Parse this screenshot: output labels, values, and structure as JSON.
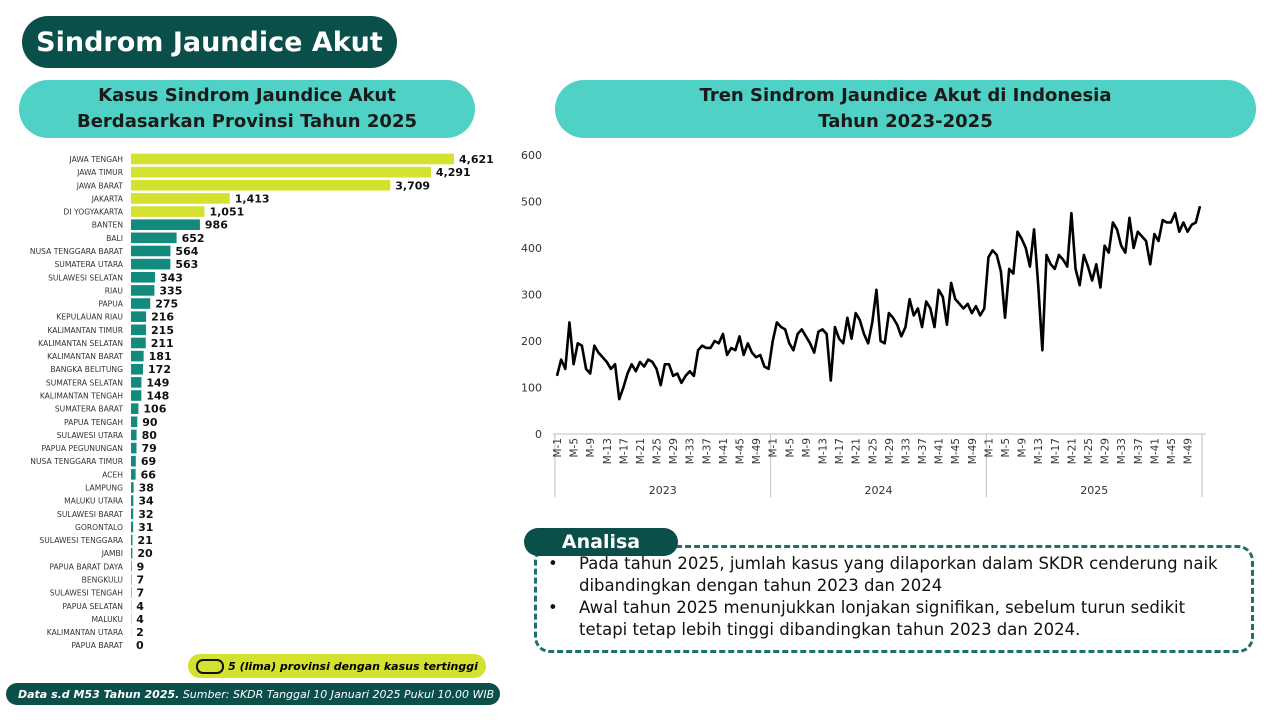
{
  "header": {
    "title": "Sindrom Jaundice Akut"
  },
  "chart_data": [
    {
      "type": "bar",
      "title": [
        "Kasus Sindrom Jaundice Akut",
        "Berdasarkan Provinsi Tahun 2025"
      ],
      "categories": [
        "JAWA TENGAH",
        "JAWA TIMUR",
        "JAWA BARAT",
        "JAKARTA",
        "DI YOGYAKARTA",
        "BANTEN",
        "BALI",
        "NUSA TENGGARA BARAT",
        "SUMATERA UTARA",
        "SULAWESI SELATAN",
        "RIAU",
        "PAPUA",
        "KEPULAUAN RIAU",
        "KALIMANTAN TIMUR",
        "KALIMANTAN SELATAN",
        "KALIMANTAN BARAT",
        "BANGKA BELITUNG",
        "SUMATERA SELATAN",
        "KALIMANTAN TENGAH",
        "SUMATERA BARAT",
        "PAPUA TENGAH",
        "SULAWESI UTARA",
        "PAPUA PEGUNUNGAN",
        "NUSA TENGGARA TIMUR",
        "ACEH",
        "LAMPUNG",
        "MALUKU UTARA",
        "SULAWESI BARAT",
        "GORONTALO",
        "SULAWESI TENGGARA",
        "JAMBI",
        "PAPUA BARAT DAYA",
        "BENGKULU",
        "SULAWESI TENGAH",
        "PAPUA SELATAN",
        "MALUKU",
        "KALIMANTAN UTARA",
        "PAPUA BARAT"
      ],
      "values": [
        4621,
        4291,
        3709,
        1413,
        1051,
        986,
        652,
        564,
        563,
        343,
        335,
        275,
        216,
        215,
        211,
        181,
        172,
        149,
        148,
        106,
        90,
        80,
        79,
        69,
        66,
        38,
        34,
        32,
        31,
        21,
        20,
        9,
        7,
        7,
        4,
        4,
        2,
        0
      ],
      "value_labels": [
        "4,621",
        "4,291",
        "3,709",
        "1,413",
        "1,051",
        "986",
        "652",
        "564",
        "563",
        "343",
        "335",
        "275",
        "216",
        "215",
        "211",
        "181",
        "172",
        "149",
        "148",
        "106",
        "90",
        "80",
        "79",
        "69",
        "66",
        "38",
        "34",
        "32",
        "31",
        "21",
        "20",
        "9",
        "7",
        "7",
        "4",
        "4",
        "2",
        "0"
      ],
      "colors": [
        "#d4e12e",
        "#d4e12e",
        "#d4e12e",
        "#d4e12e",
        "#d4e12e",
        "#138a7e",
        "#138a7e",
        "#138a7e",
        "#138a7e",
        "#138a7e",
        "#138a7e",
        "#138a7e",
        "#138a7e",
        "#138a7e",
        "#138a7e",
        "#138a7e",
        "#138a7e",
        "#138a7e",
        "#138a7e",
        "#138a7e",
        "#138a7e",
        "#138a7e",
        "#138a7e",
        "#138a7e",
        "#138a7e",
        "#138a7e",
        "#138a7e",
        "#138a7e",
        "#138a7e",
        "#138a7e",
        "#138a7e",
        "#138a7e",
        "#138a7e",
        "#138a7e",
        "#138a7e",
        "#138a7e",
        "#138a7e",
        "#138a7e"
      ],
      "legend": {
        "label": "5 (lima) provinsi dengan kasus tertinggi",
        "color": "#d4e12e"
      }
    },
    {
      "type": "line",
      "title": [
        "Tren Sindrom Jaundice Akut di Indonesia",
        "Tahun 2023-2025"
      ],
      "groups": [
        {
          "label": "2023",
          "categories": [
            "M-1",
            null,
            null,
            null,
            "M-5",
            null,
            null,
            null,
            "M-9",
            null,
            null,
            null,
            "M-13",
            null,
            null,
            null,
            "M-17",
            null,
            null,
            null,
            "M-21",
            null,
            null,
            null,
            "M-25",
            null,
            null,
            null,
            "M-29",
            null,
            null,
            null,
            "M-33",
            null,
            null,
            null,
            "M-37",
            null,
            null,
            null,
            "M-41",
            null,
            null,
            null,
            "M-45",
            null,
            null,
            null,
            "M-49",
            null,
            null,
            null
          ]
        },
        {
          "label": "2024",
          "categories": [
            "M-1",
            null,
            null,
            null,
            "M-5",
            null,
            null,
            null,
            "M-9",
            null,
            null,
            null,
            "M-13",
            null,
            null,
            null,
            "M-17",
            null,
            null,
            null,
            "M-21",
            null,
            null,
            null,
            "M-25",
            null,
            null,
            null,
            "M-29",
            null,
            null,
            null,
            "M-33",
            null,
            null,
            null,
            "M-37",
            null,
            null,
            null,
            "M-41",
            null,
            null,
            null,
            "M-45",
            null,
            null,
            null,
            "M-49",
            null,
            null,
            null
          ]
        },
        {
          "label": "2025",
          "categories": [
            "M-1",
            null,
            null,
            null,
            "M-5",
            null,
            null,
            null,
            "M-9",
            null,
            null,
            null,
            "M-13",
            null,
            null,
            null,
            "M-17",
            null,
            null,
            null,
            "M-21",
            null,
            null,
            null,
            "M-25",
            null,
            null,
            null,
            "M-29",
            null,
            null,
            null,
            "M-33",
            null,
            null,
            null,
            "M-37",
            null,
            null,
            null,
            "M-41",
            null,
            null,
            null,
            "M-45",
            null,
            null,
            null,
            "M-49",
            null,
            null,
            null
          ]
        }
      ],
      "values": [
        125,
        160,
        140,
        240,
        150,
        195,
        190,
        140,
        130,
        190,
        175,
        165,
        155,
        140,
        150,
        75,
        100,
        130,
        150,
        135,
        155,
        145,
        160,
        155,
        140,
        105,
        150,
        150,
        125,
        130,
        110,
        125,
        135,
        125,
        180,
        190,
        185,
        185,
        200,
        195,
        215,
        170,
        185,
        180,
        210,
        170,
        195,
        175,
        165,
        170,
        145,
        140,
        200,
        240,
        230,
        225,
        195,
        180,
        215,
        225,
        210,
        195,
        175,
        220,
        225,
        215,
        115,
        230,
        205,
        195,
        250,
        205,
        260,
        245,
        215,
        195,
        240,
        310,
        200,
        195,
        260,
        250,
        235,
        210,
        230,
        290,
        255,
        270,
        230,
        285,
        270,
        230,
        310,
        295,
        235,
        325,
        290,
        280,
        270,
        280,
        260,
        275,
        255,
        270,
        380,
        395,
        385,
        350,
        250,
        355,
        345,
        435,
        420,
        400,
        360,
        440,
        320,
        180,
        385,
        365,
        355,
        385,
        375,
        360,
        475,
        355,
        320,
        385,
        360,
        330,
        365,
        315,
        405,
        390,
        455,
        440,
        405,
        390,
        465,
        400,
        435,
        425,
        415,
        365,
        430,
        415,
        460,
        455,
        455,
        475,
        435,
        455,
        435,
        450,
        455,
        490
      ],
      "color": "#000000",
      "ylim": [
        0,
        600
      ],
      "yticks": [
        0,
        100,
        200,
        300,
        400,
        500,
        600
      ]
    }
  ],
  "analysis": {
    "title": "Analisa",
    "bullets": [
      "Pada tahun 2025, jumlah kasus yang dilaporkan dalam SKDR cenderung naik dibandingkan dengan tahun 2023 dan 2024",
      "Awal tahun 2025 menunjukkan lonjakan signifikan, sebelum turun sedikit tetapi tetap lebih tinggi dibandingkan tahun 2023 dan 2024."
    ]
  },
  "footer": {
    "bold": "Data s.d M53 Tahun 2025.",
    "text": " Sumber: SKDR Tanggal 10 Januari 2025 Pukul 10.00 WIB"
  }
}
